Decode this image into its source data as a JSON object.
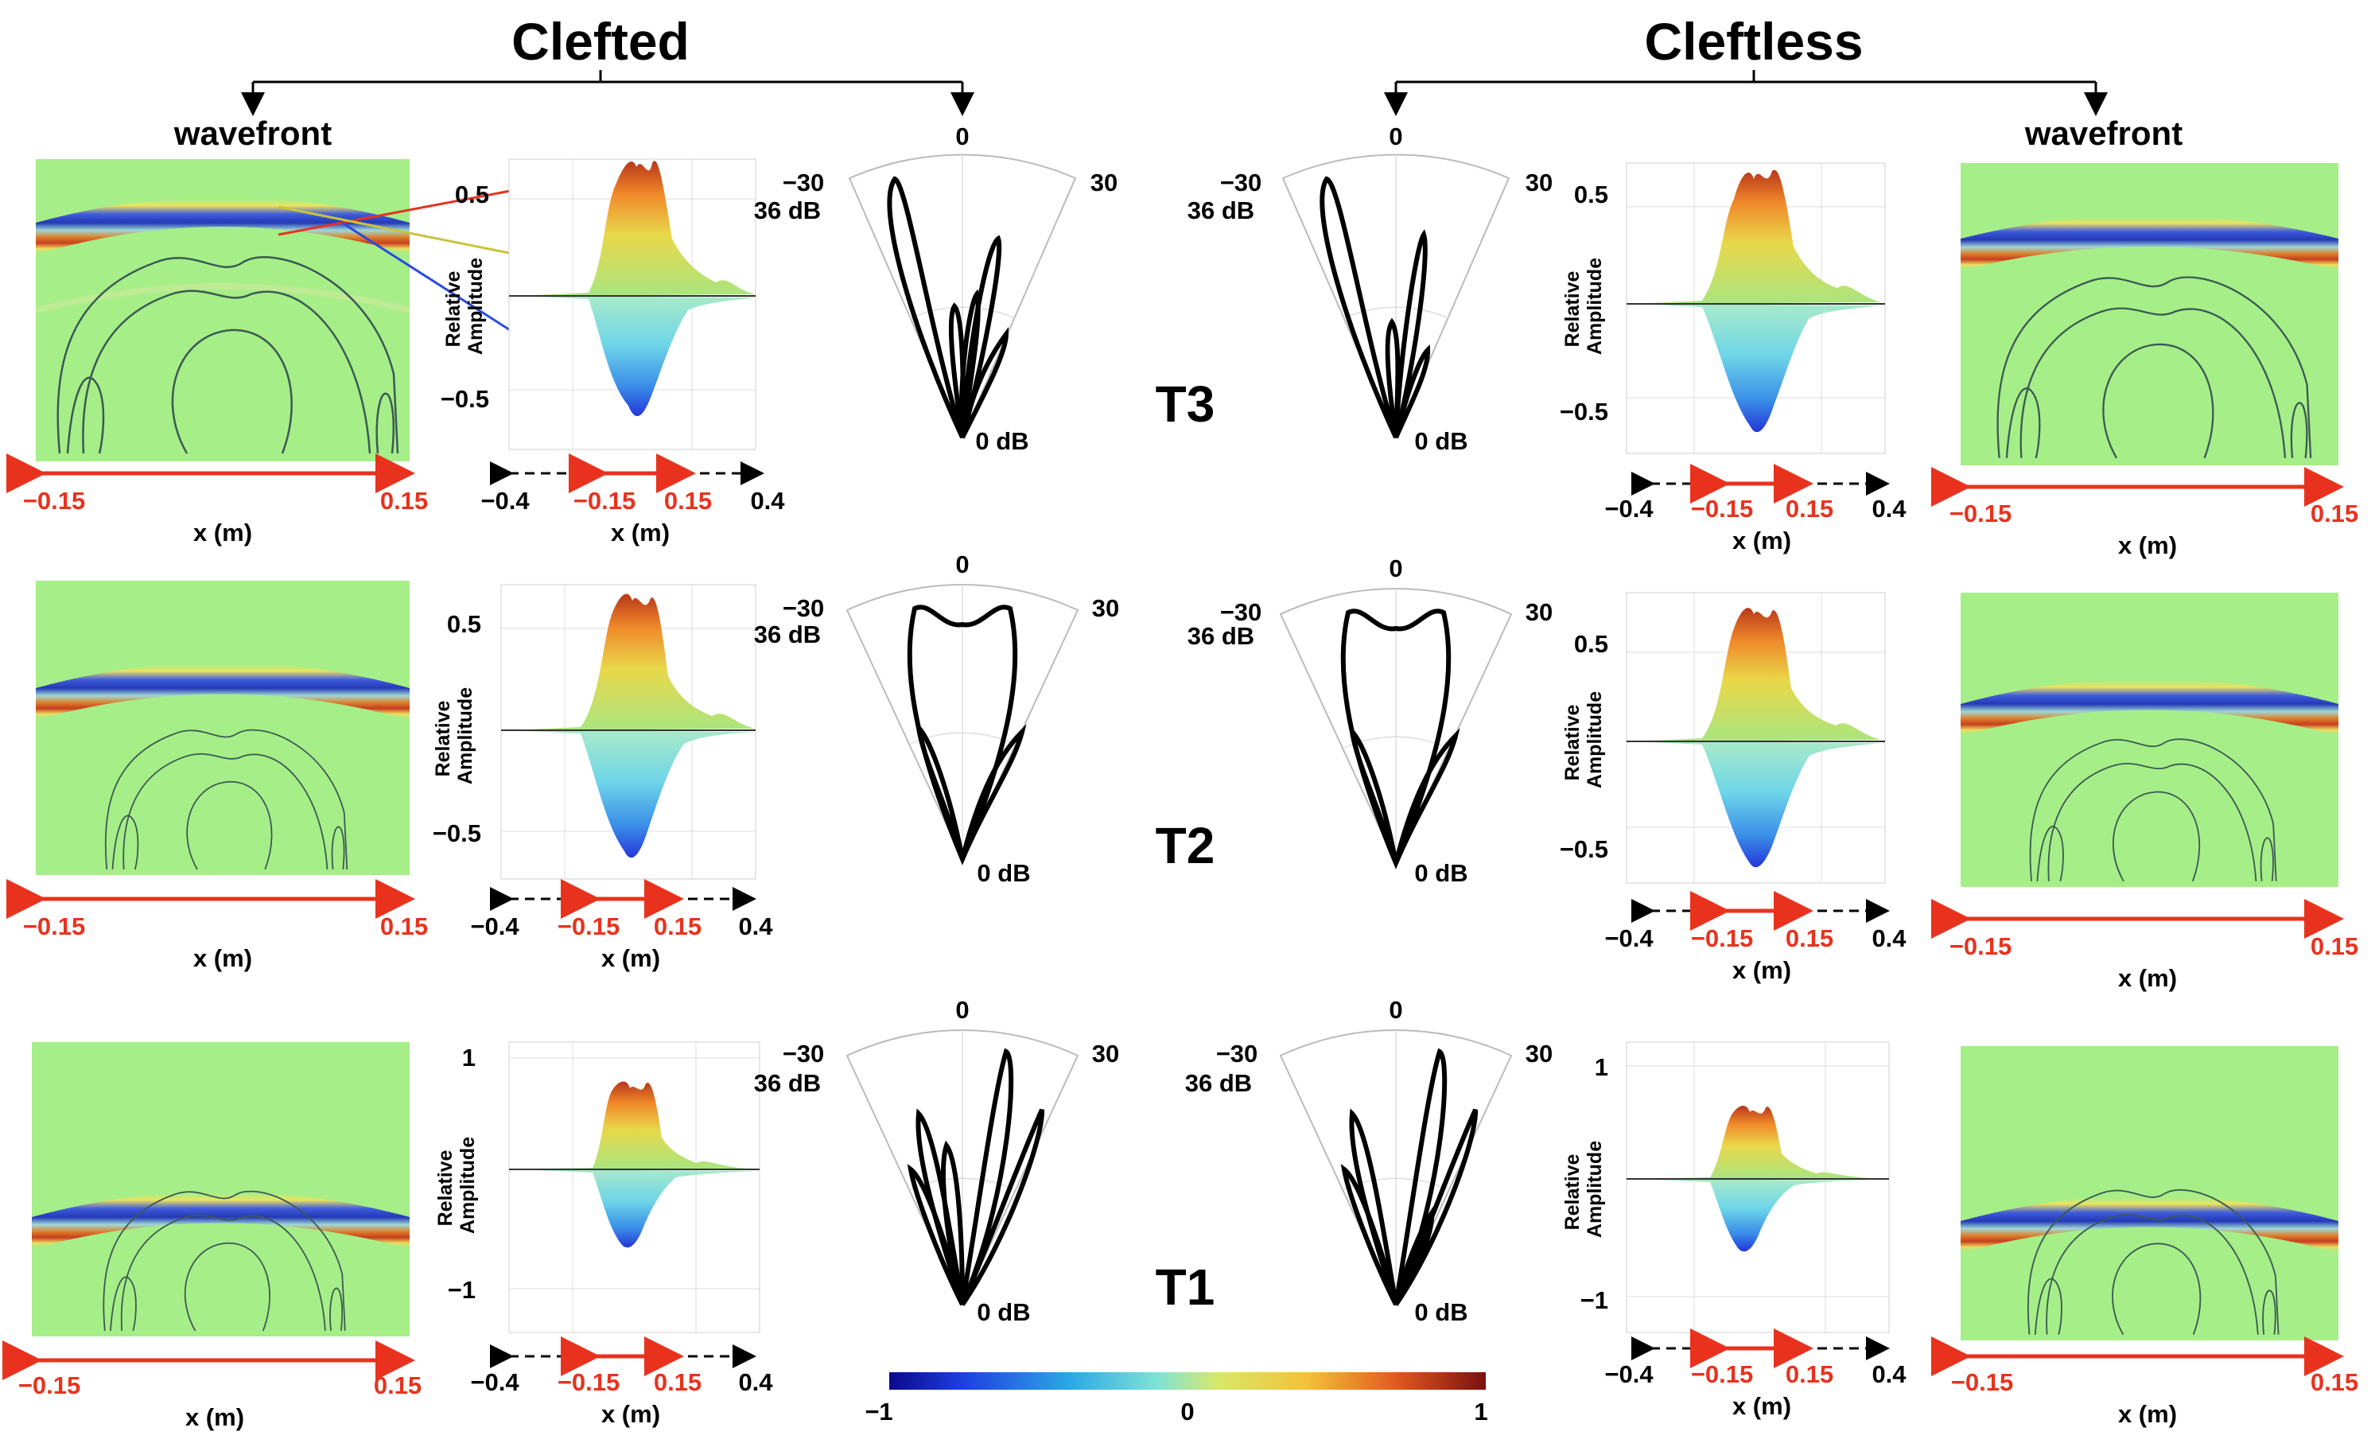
{
  "figure": {
    "headers": {
      "clefted": "Clefted",
      "cleftless": "Cleftless"
    },
    "wavefront_label": "wavefront",
    "xlabel": "x (m)",
    "ylabel_line1": "Relative",
    "ylabel_line2": "Amplitude",
    "rows": [
      {
        "id": "T3",
        "label": "T3",
        "y_ticks": [
          "0.5",
          "−0.5"
        ]
      },
      {
        "id": "T2",
        "label": "T2",
        "y_ticks": [
          "0.5",
          "−0.5"
        ]
      },
      {
        "id": "T1",
        "label": "T1",
        "y_ticks": [
          "1",
          "−1"
        ]
      }
    ],
    "wavefront_ticks": [
      "−0.15",
      "0.15"
    ],
    "amp_ticks_black": [
      "−0.4",
      "0.4"
    ],
    "amp_ticks_red": [
      "−0.15",
      "0.15"
    ],
    "polar": {
      "angle_labels": [
        "−30",
        "0",
        "30"
      ],
      "outer_db": "36 dB",
      "center_db": "0 dB"
    },
    "colorbar": {
      "min": "−1",
      "mid": "0",
      "max": "1"
    },
    "colors": {
      "red_annotation": "#e8321e",
      "blue_arrow": "#2a4bdf",
      "yellow_arrow": "#c8c43a",
      "background_field": "#a6ee88"
    }
  }
}
